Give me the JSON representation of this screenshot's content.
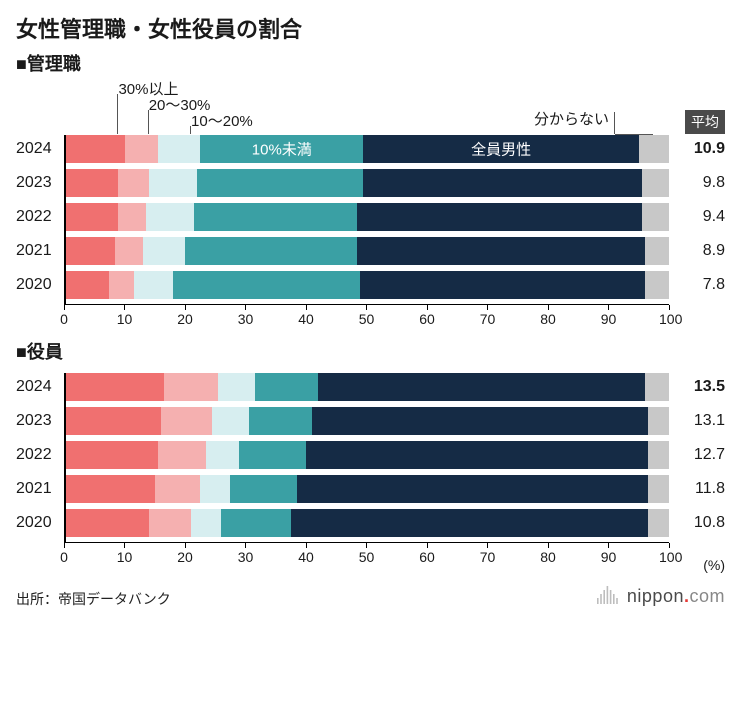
{
  "title": "女性管理職・女性役員の割合",
  "segments": {
    "keys": [
      "ge30",
      "r20_30",
      "r10_20",
      "lt10",
      "all_male",
      "unknown"
    ],
    "labels": [
      "30%以上",
      "20〜30%",
      "10〜20%",
      "10%未満",
      "全員男性",
      "分からない"
    ],
    "colors": [
      "#f07070",
      "#f5b0b0",
      "#d7eef0",
      "#3aa0a4",
      "#152b45",
      "#c8c8c8"
    ]
  },
  "avg_header": "平均",
  "axis": {
    "min": 0,
    "max": 100,
    "step": 10,
    "unit": "(%)"
  },
  "leader_positions_pct": {
    "ge30": 9,
    "r20_30": 14,
    "r10_20": 21,
    "lt10": 36,
    "all_male": 73,
    "unknown": 97
  },
  "label_text_color": {
    "lt10": "#ffffff",
    "all_male": "#ffffff"
  },
  "sections": [
    {
      "title": "■管理職",
      "show_leaders": true,
      "show_inbar_labels": true,
      "rows": [
        {
          "year": "2024",
          "values": {
            "ge30": 10.0,
            "r20_30": 5.5,
            "r10_20": 7.0,
            "lt10": 27.0,
            "all_male": 45.5,
            "unknown": 5.0
          },
          "avg": "10.9",
          "avg_bold": true
        },
        {
          "year": "2023",
          "values": {
            "ge30": 9.0,
            "r20_30": 5.0,
            "r10_20": 8.0,
            "lt10": 27.5,
            "all_male": 46.0,
            "unknown": 4.5
          },
          "avg": "9.8"
        },
        {
          "year": "2022",
          "values": {
            "ge30": 9.0,
            "r20_30": 4.5,
            "r10_20": 8.0,
            "lt10": 27.0,
            "all_male": 47.0,
            "unknown": 4.5
          },
          "avg": "9.4"
        },
        {
          "year": "2021",
          "values": {
            "ge30": 8.5,
            "r20_30": 4.5,
            "r10_20": 7.0,
            "lt10": 28.5,
            "all_male": 47.5,
            "unknown": 4.0
          },
          "avg": "8.9"
        },
        {
          "year": "2020",
          "values": {
            "ge30": 7.5,
            "r20_30": 4.0,
            "r10_20": 6.5,
            "lt10": 31.0,
            "all_male": 47.0,
            "unknown": 4.0
          },
          "avg": "7.8"
        }
      ]
    },
    {
      "title": "■役員",
      "show_leaders": false,
      "show_inbar_labels": false,
      "rows": [
        {
          "year": "2024",
          "values": {
            "ge30": 16.5,
            "r20_30": 9.0,
            "r10_20": 6.0,
            "lt10": 10.5,
            "all_male": 54.0,
            "unknown": 4.0
          },
          "avg": "13.5",
          "avg_bold": true
        },
        {
          "year": "2023",
          "values": {
            "ge30": 16.0,
            "r20_30": 8.5,
            "r10_20": 6.0,
            "lt10": 10.5,
            "all_male": 55.5,
            "unknown": 3.5
          },
          "avg": "13.1"
        },
        {
          "year": "2022",
          "values": {
            "ge30": 15.5,
            "r20_30": 8.0,
            "r10_20": 5.5,
            "lt10": 11.0,
            "all_male": 56.5,
            "unknown": 3.5
          },
          "avg": "12.7"
        },
        {
          "year": "2021",
          "values": {
            "ge30": 15.0,
            "r20_30": 7.5,
            "r10_20": 5.0,
            "lt10": 11.0,
            "all_male": 58.0,
            "unknown": 3.5
          },
          "avg": "11.8"
        },
        {
          "year": "2020",
          "values": {
            "ge30": 14.0,
            "r20_30": 7.0,
            "r10_20": 5.0,
            "lt10": 11.5,
            "all_male": 59.0,
            "unknown": 3.5
          },
          "avg": "10.8"
        }
      ]
    }
  ],
  "source": "出所：帝国データバンク",
  "logo": {
    "text": "nippon",
    "dot": ".",
    "suffix": "com",
    "mark_color": "#bdbdbd"
  },
  "typography": {
    "title_size": 22,
    "section_size": 18,
    "year_size": 16,
    "avg_size": 16,
    "axis_size": 14
  }
}
